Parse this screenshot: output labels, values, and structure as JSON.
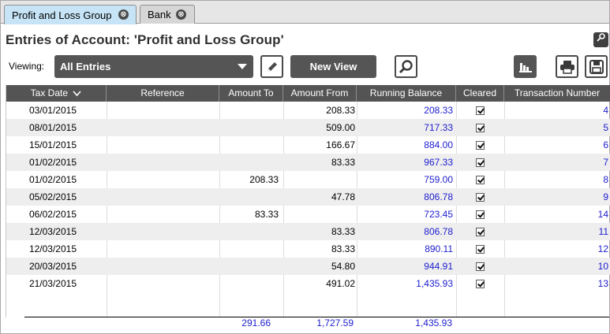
{
  "tabs": [
    {
      "label": "Profit and Loss Group",
      "close": "⊗"
    },
    {
      "label": "Bank",
      "close": "⊗"
    }
  ],
  "title": "Entries of Account:  'Profit and Loss Group'",
  "toolbar": {
    "viewing_label": "Viewing:",
    "view_value": "All Entries",
    "new_view_label": "New View"
  },
  "icons": {
    "edit": "pencil-icon",
    "search": "magnifier-icon",
    "chart": "bar-chart-icon",
    "print": "printer-icon",
    "save": "save-icon",
    "corner": "pin-icon"
  },
  "columns": [
    "Tax Date",
    "Reference",
    "Amount To",
    "Amount From",
    "Running Balance",
    "Cleared",
    "Transaction Number"
  ],
  "rows": [
    {
      "date": "03/01/2015",
      "ref": "",
      "to": "",
      "from": "208.33",
      "bal": "208.33",
      "txn": "4"
    },
    {
      "date": "08/01/2015",
      "ref": "",
      "to": "",
      "from": "509.00",
      "bal": "717.33",
      "txn": "5"
    },
    {
      "date": "15/01/2015",
      "ref": "",
      "to": "",
      "from": "166.67",
      "bal": "884.00",
      "txn": "6"
    },
    {
      "date": "01/02/2015",
      "ref": "",
      "to": "",
      "from": "83.33",
      "bal": "967.33",
      "txn": "7"
    },
    {
      "date": "01/02/2015",
      "ref": "",
      "to": "208.33",
      "from": "",
      "bal": "759.00",
      "txn": "8"
    },
    {
      "date": "05/02/2015",
      "ref": "",
      "to": "",
      "from": "47.78",
      "bal": "806.78",
      "txn": "9"
    },
    {
      "date": "06/02/2015",
      "ref": "",
      "to": "83.33",
      "from": "",
      "bal": "723.45",
      "txn": "14"
    },
    {
      "date": "12/03/2015",
      "ref": "",
      "to": "",
      "from": "83.33",
      "bal": "806.78",
      "txn": "11"
    },
    {
      "date": "12/03/2015",
      "ref": "",
      "to": "",
      "from": "83.33",
      "bal": "890.11",
      "txn": "12"
    },
    {
      "date": "20/03/2015",
      "ref": "",
      "to": "",
      "from": "54.80",
      "bal": "944.91",
      "txn": "10"
    },
    {
      "date": "21/03/2015",
      "ref": "",
      "to": "",
      "from": "491.02",
      "bal": "1,435.93",
      "txn": "13"
    }
  ],
  "totals": {
    "to": "291.66",
    "from": "1,727.59",
    "bal": "1,435.93"
  },
  "colors": {
    "accent_tab": "#c6e4f6",
    "header_bg": "#545454",
    "link_blue": "#1c1ccf",
    "button_bg": "#555555"
  }
}
